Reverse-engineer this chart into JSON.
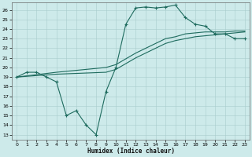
{
  "bg_color": "#cdeaea",
  "line_color": "#1e6b5e",
  "grid_color": "#a8cccc",
  "xlabel": "Humidex (Indice chaleur)",
  "xlim": [
    -0.5,
    23.5
  ],
  "ylim": [
    12.5,
    26.8
  ],
  "xticks": [
    0,
    1,
    2,
    3,
    4,
    5,
    6,
    7,
    8,
    9,
    10,
    11,
    12,
    13,
    14,
    15,
    16,
    17,
    18,
    19,
    20,
    21,
    22,
    23
  ],
  "yticks": [
    13,
    14,
    15,
    16,
    17,
    18,
    19,
    20,
    21,
    22,
    23,
    24,
    25,
    26
  ],
  "line1_x": [
    0,
    1,
    2,
    3,
    4,
    5,
    6,
    7,
    8,
    9,
    10,
    11,
    12,
    13,
    14,
    15,
    16,
    17,
    18,
    19,
    20,
    21,
    22,
    23
  ],
  "line1_y": [
    19,
    19.5,
    19.5,
    19,
    18.5,
    15,
    15.5,
    14,
    13,
    17.5,
    20,
    24.5,
    26.2,
    26.3,
    26.2,
    26.3,
    26.5,
    25.2,
    24.5,
    24.3,
    23.5,
    23.5,
    23,
    23
  ],
  "line2_x": [
    0,
    4,
    9,
    10,
    12,
    13,
    14,
    15,
    16,
    17,
    18,
    19,
    20,
    21,
    22,
    23
  ],
  "line2_y": [
    19,
    19.3,
    19.5,
    19.8,
    21.0,
    21.5,
    22.0,
    22.5,
    22.8,
    23.0,
    23.2,
    23.3,
    23.4,
    23.5,
    23.6,
    23.7
  ],
  "line3_x": [
    0,
    4,
    9,
    10,
    12,
    13,
    14,
    15,
    16,
    17,
    18,
    19,
    20,
    21,
    22,
    23
  ],
  "line3_y": [
    19,
    19.5,
    20.0,
    20.3,
    21.5,
    22.0,
    22.5,
    23.0,
    23.2,
    23.5,
    23.6,
    23.7,
    23.7,
    23.7,
    23.8,
    23.8
  ]
}
